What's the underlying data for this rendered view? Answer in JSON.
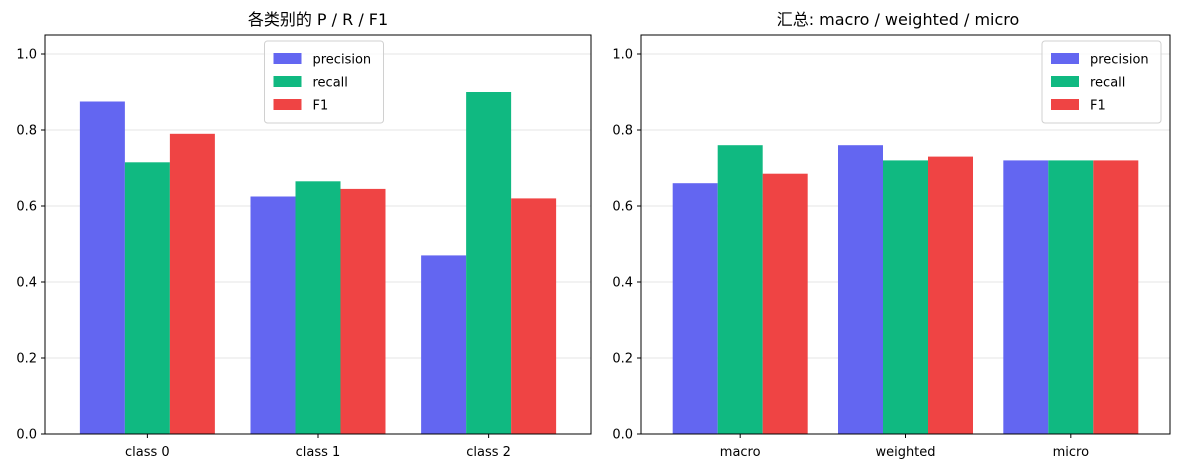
{
  "chart_data": [
    {
      "type": "bar",
      "title": "各类别的 P / R / F1",
      "categories": [
        "class 0",
        "class 1",
        "class 2"
      ],
      "series": [
        {
          "name": "precision",
          "values": [
            0.875,
            0.625,
            0.47
          ],
          "color": "#6366f1"
        },
        {
          "name": "recall",
          "values": [
            0.715,
            0.665,
            0.9
          ],
          "color": "#10b981"
        },
        {
          "name": "F1",
          "values": [
            0.79,
            0.645,
            0.62
          ],
          "color": "#ef4444"
        }
      ],
      "ylim": [
        0,
        1.05
      ],
      "yticks": [
        "0.0",
        "0.2",
        "0.4",
        "0.6",
        "0.8",
        "1.0"
      ],
      "grid": "y",
      "legend": "top-center"
    },
    {
      "type": "bar",
      "title": "汇总: macro / weighted / micro",
      "categories": [
        "macro",
        "weighted",
        "micro"
      ],
      "series": [
        {
          "name": "precision",
          "values": [
            0.66,
            0.76,
            0.72
          ],
          "color": "#6366f1"
        },
        {
          "name": "recall",
          "values": [
            0.76,
            0.72,
            0.72
          ],
          "color": "#10b981"
        },
        {
          "name": "F1",
          "values": [
            0.685,
            0.73,
            0.72
          ],
          "color": "#ef4444"
        }
      ],
      "ylim": [
        0,
        1.05
      ],
      "yticks": [
        "0.0",
        "0.2",
        "0.4",
        "0.6",
        "0.8",
        "1.0"
      ],
      "grid": "y",
      "legend": "top-right"
    }
  ]
}
